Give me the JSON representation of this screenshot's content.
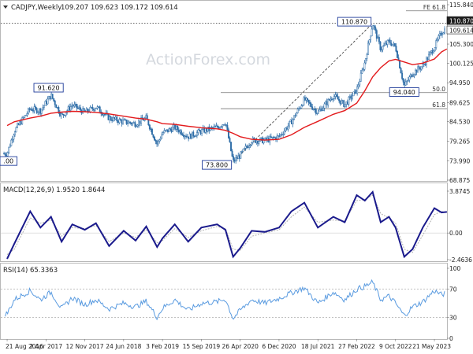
{
  "header": {
    "symbol": "CADJPY,Weekly",
    "ohlc": "109.207 109.623 109.172 109.614"
  },
  "watermark": "ActionForex.com",
  "price_panel": {
    "y_ticks": [
      "115.840",
      "110.870",
      "109.614",
      "105.300",
      "100.125",
      "94.950",
      "89.625",
      "84.530",
      "79.265",
      "73.990",
      "68.875"
    ],
    "fib_labels": [
      "FE 61.8",
      "50.0",
      "61.8"
    ],
    "annotations": [
      {
        "text": "91.620",
        "date": "2017-04-17",
        "price": 91.62
      },
      {
        "text": "73.800",
        "date": "2020-03-16",
        "price": 73.8
      },
      {
        "text": "110.870",
        "date": "2022-05-30",
        "price": 110.87
      },
      {
        "text": "94.040",
        "date": "2022-11-28",
        "price": 94.04
      },
      {
        "text": ".00",
        "date": "2016-08-01",
        "price": 74.0
      }
    ]
  },
  "macd_panel": {
    "title": "MACD(12,26,9) 1.9520 1.8644",
    "y_ticks": [
      "3.8745",
      "0.00",
      "-2.4636"
    ]
  },
  "rsi_panel": {
    "title": "RSI(14) 65.3363",
    "y_ticks": [
      "100",
      "70",
      "30",
      "0"
    ]
  },
  "x_ticks": [
    "21 Aug 2016",
    "2 Apr 2017",
    "12 Nov 2017",
    "24 Jun 2018",
    "3 Feb 2019",
    "15 Sep 2019",
    "26 Apr 2020",
    "6 Dec 2020",
    "18 Jul 2021",
    "27 Feb 2022",
    "9 Oct 2022",
    "21 May 2023"
  ],
  "colors": {
    "candles": "#2f6ea8",
    "moving_average": "#e31a1c",
    "fib_lines": "#777777",
    "macd_line": "#1a1a8c",
    "macd_signal": "#b0b0b0",
    "rsi_line": "#5a9be0",
    "label_border": "#1f3c9a"
  },
  "chart_data": [
    {
      "type": "line",
      "title": "CADJPY,Weekly",
      "x": [
        "2016-08-21",
        "2016-10-01",
        "2017-01-01",
        "2017-03-01",
        "2017-05-01",
        "2017-07-01",
        "2017-09-01",
        "2017-11-12",
        "2018-01-15",
        "2018-04-01",
        "2018-06-24",
        "2018-09-01",
        "2018-11-01",
        "2019-01-03",
        "2019-02-03",
        "2019-04-15",
        "2019-07-01",
        "2019-09-15",
        "2019-12-15",
        "2020-02-01",
        "2020-03-16",
        "2020-04-26",
        "2020-07-01",
        "2020-09-15",
        "2020-12-06",
        "2021-02-15",
        "2021-05-01",
        "2021-07-18",
        "2021-10-15",
        "2021-12-20",
        "2022-02-27",
        "2022-04-15",
        "2022-05-30",
        "2022-07-15",
        "2022-09-01",
        "2022-10-09",
        "2022-11-28",
        "2023-01-15",
        "2023-03-15",
        "2023-05-21",
        "2023-07-01",
        "2023-08-01"
      ],
      "series": [
        {
          "name": "Close",
          "values": [
            76.0,
            82.0,
            88.0,
            87.5,
            91.6,
            86.0,
            89.0,
            87.0,
            88.5,
            85.5,
            84.5,
            84.0,
            85.5,
            78.5,
            81.5,
            83.0,
            80.5,
            82.0,
            83.0,
            84.5,
            73.8,
            75.5,
            79.5,
            79.5,
            80.5,
            84.5,
            90.5,
            87.0,
            91.5,
            89.0,
            93.0,
            100.5,
            110.87,
            104.0,
            106.0,
            104.5,
            94.04,
            97.5,
            99.5,
            104.5,
            108.5,
            109.614
          ]
        },
        {
          "name": "MA",
          "values": [
            83.5,
            84.5,
            85.5,
            86.0,
            86.8,
            87.1,
            87.3,
            87.2,
            87.0,
            86.6,
            86.0,
            85.5,
            85.2,
            84.5,
            84.0,
            83.8,
            83.3,
            82.9,
            82.6,
            82.2,
            81.4,
            80.5,
            79.8,
            79.6,
            79.8,
            81.0,
            83.0,
            84.6,
            86.5,
            87.5,
            89.5,
            92.8,
            96.5,
            99.0,
            100.8,
            101.2,
            100.5,
            99.8,
            100.2,
            101.3,
            103.2,
            104.0
          ]
        }
      ],
      "ylim": [
        68.875,
        115.84
      ],
      "y_ticks": [
        115.84,
        110.87,
        109.614,
        105.3,
        100.125,
        94.95,
        89.625,
        84.53,
        79.265,
        73.99,
        68.875
      ],
      "fib_levels": [
        {
          "label": "FE 61.8",
          "value": 114.2
        },
        {
          "label": "50.0",
          "value": 92.3
        },
        {
          "label": "61.8",
          "value": 88.0
        }
      ],
      "horizontal_line": {
        "value": 110.87,
        "style": "dotted"
      },
      "trendline": {
        "from": [
          "2020-03-16",
          73.8
        ],
        "to": [
          "2022-05-30",
          110.87
        ],
        "style": "dashed"
      },
      "grid": false
    },
    {
      "type": "line",
      "title": "MACD(12,26,9) 1.9520 1.8644",
      "x": [
        "2016-08-21",
        "2016-10-01",
        "2017-01-01",
        "2017-03-01",
        "2017-05-01",
        "2017-07-01",
        "2017-09-01",
        "2017-11-12",
        "2018-01-15",
        "2018-04-01",
        "2018-06-24",
        "2018-09-01",
        "2018-11-01",
        "2019-01-03",
        "2019-02-03",
        "2019-04-15",
        "2019-07-01",
        "2019-09-15",
        "2019-12-15",
        "2020-02-01",
        "2020-03-16",
        "2020-04-26",
        "2020-07-01",
        "2020-09-15",
        "2020-12-06",
        "2021-02-15",
        "2021-05-01",
        "2021-07-18",
        "2021-10-15",
        "2021-12-20",
        "2022-02-27",
        "2022-04-15",
        "2022-05-30",
        "2022-07-15",
        "2022-09-01",
        "2022-10-09",
        "2022-11-28",
        "2023-01-15",
        "2023-03-15",
        "2023-05-21",
        "2023-07-01",
        "2023-08-01"
      ],
      "series": [
        {
          "name": "MACD",
          "values": [
            -2.4,
            -1.0,
            2.0,
            0.5,
            1.5,
            -0.8,
            0.8,
            0.3,
            0.9,
            -1.2,
            0.2,
            -0.7,
            0.6,
            -1.3,
            -0.5,
            0.8,
            -0.8,
            0.5,
            0.8,
            0.3,
            -2.2,
            -1.4,
            0.2,
            0.1,
            0.5,
            2.0,
            2.8,
            0.5,
            1.5,
            1.0,
            3.5,
            3.0,
            3.8,
            1.0,
            1.5,
            0.5,
            -2.2,
            -1.5,
            0.5,
            2.3,
            1.9,
            1.95
          ]
        },
        {
          "name": "Signal",
          "values": [
            -2.0,
            -1.5,
            1.4,
            0.9,
            1.2,
            -0.3,
            0.5,
            0.4,
            0.7,
            -0.8,
            0.0,
            -0.4,
            0.3,
            -0.9,
            -0.7,
            0.4,
            -0.4,
            0.2,
            0.6,
            0.4,
            -1.5,
            -1.6,
            -0.3,
            0.0,
            0.3,
            1.5,
            2.4,
            1.0,
            1.2,
            1.1,
            3.0,
            3.1,
            3.5,
            1.8,
            1.4,
            0.9,
            -1.5,
            -1.8,
            -0.2,
            1.7,
            2.0,
            1.86
          ]
        }
      ],
      "ylim": [
        -2.4636,
        3.8745
      ],
      "y_ticks": [
        3.8745,
        0.0,
        -2.4636
      ],
      "grid": false
    },
    {
      "type": "line",
      "title": "RSI(14) 65.3363",
      "x": [
        "2016-08-21",
        "2016-10-01",
        "2017-01-01",
        "2017-03-01",
        "2017-05-01",
        "2017-07-01",
        "2017-09-01",
        "2017-11-12",
        "2018-01-15",
        "2018-04-01",
        "2018-06-24",
        "2018-09-01",
        "2018-11-01",
        "2019-01-03",
        "2019-02-03",
        "2019-04-15",
        "2019-07-01",
        "2019-09-15",
        "2019-12-15",
        "2020-02-01",
        "2020-03-16",
        "2020-04-26",
        "2020-07-01",
        "2020-09-15",
        "2020-12-06",
        "2021-02-15",
        "2021-05-01",
        "2021-07-18",
        "2021-10-15",
        "2021-12-20",
        "2022-02-27",
        "2022-04-15",
        "2022-05-30",
        "2022-07-15",
        "2022-09-01",
        "2022-10-09",
        "2022-11-28",
        "2023-01-15",
        "2023-03-15",
        "2023-05-21",
        "2023-07-01",
        "2023-08-01"
      ],
      "series": [
        {
          "name": "RSI",
          "values": [
            35,
            55,
            68,
            55,
            66,
            42,
            58,
            48,
            55,
            42,
            50,
            45,
            53,
            30,
            43,
            55,
            40,
            50,
            52,
            56,
            28,
            40,
            55,
            50,
            57,
            65,
            72,
            50,
            66,
            55,
            70,
            74,
            80,
            55,
            60,
            50,
            32,
            45,
            52,
            68,
            62,
            65.34
          ]
        }
      ],
      "ylim": [
        0,
        100
      ],
      "y_ticks": [
        100,
        70,
        30,
        0
      ],
      "reference_lines": [
        70,
        30
      ],
      "grid": false
    }
  ]
}
